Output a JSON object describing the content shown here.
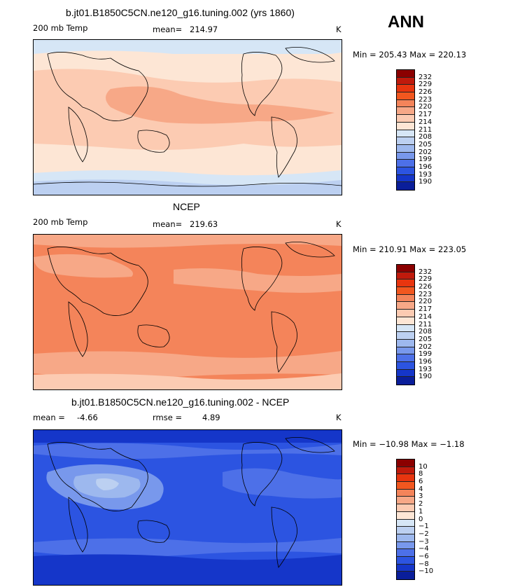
{
  "season_label": "ANN",
  "units": "K",
  "palette": {
    "temp": [
      "#8b0000",
      "#c01a0c",
      "#e8350f",
      "#f2571f",
      "#f4845a",
      "#f7a887",
      "#fccbb2",
      "#fde6d5",
      "#d6e6f6",
      "#bcd0f1",
      "#9db8ee",
      "#7898ec",
      "#4d70e8",
      "#2c54e1",
      "#1536c9",
      "#0a1e9a"
    ],
    "diff": [
      "#8b0000",
      "#c01a0c",
      "#e8350f",
      "#f2571f",
      "#f4845a",
      "#f7a887",
      "#fccbb2",
      "#fde6d5",
      "#d6e6f6",
      "#bcd0f1",
      "#9db8ee",
      "#7898ec",
      "#4d70e8",
      "#2c54e1",
      "#1536c9",
      "#0a1e9a"
    ],
    "coast": "#000000"
  },
  "panels": [
    {
      "title": "b.jt01.B1850C5CN.ne120_g16.tuning.002 (yrs 1860)",
      "left_label": "200 mb Temp",
      "stat_label": "mean=",
      "stat_value": "214.97",
      "units": "K",
      "minmax": "Min = 205.43 Max = 220.13",
      "colorbar_labels": [
        "232",
        "229",
        "226",
        "223",
        "220",
        "217",
        "214",
        "211",
        "208",
        "205",
        "202",
        "199",
        "196",
        "193",
        "190"
      ]
    },
    {
      "title": "NCEP",
      "left_label": "200 mb Temp",
      "stat_label": "mean=",
      "stat_value": "219.63",
      "units": "K",
      "minmax": "Min = 210.91 Max = 223.05",
      "colorbar_labels": [
        "232",
        "229",
        "226",
        "223",
        "220",
        "217",
        "214",
        "211",
        "208",
        "205",
        "202",
        "199",
        "196",
        "193",
        "190"
      ]
    },
    {
      "title": "b.jt01.B1850C5CN.ne120_g16.tuning.002 - NCEP",
      "left_label": "mean =",
      "left_value": "-4.66",
      "stat_label": "rmse =",
      "stat_value": "4.89",
      "units": "K",
      "minmax": "Min = −10.98 Max = −1.18",
      "colorbar_labels": [
        "10",
        "8",
        "6",
        "4",
        "3",
        "2",
        "1",
        "0",
        "−1",
        "−2",
        "−3",
        "−4",
        "−6",
        "−8",
        "−10"
      ]
    }
  ]
}
